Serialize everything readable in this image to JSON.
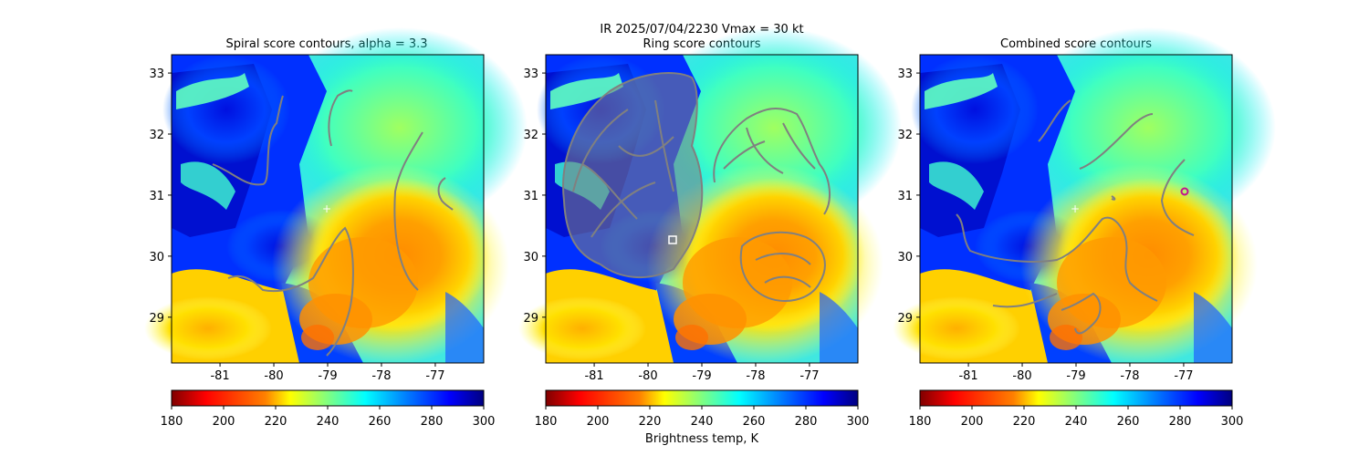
{
  "figure": {
    "suptitle": "IR  2025/07/04/2230    Vmax = 30 kt",
    "colorbar_label": "Brightness temp, K"
  },
  "chart_data": [
    {
      "type": "heatmap",
      "title": "Spiral score contours, alpha =  3.3",
      "xlim": [
        -81.9,
        -76.1
      ],
      "ylim": [
        28.25,
        33.3
      ],
      "xticks": [
        -81,
        -80,
        -79,
        -78,
        -77
      ],
      "yticks": [
        29,
        30,
        31,
        32,
        33
      ],
      "colorbar": {
        "min": 180,
        "max": 300,
        "ticks": [
          180,
          200,
          220,
          240,
          260,
          280,
          300
        ],
        "colormap": "jet_r"
      },
      "markers": [
        {
          "name": "center-estimate",
          "x": -79.05,
          "y": 30.77,
          "symbol": "+",
          "color": "#ffffff"
        }
      ]
    },
    {
      "type": "heatmap",
      "title": "Ring score contours",
      "xlim": [
        -81.9,
        -76.1
      ],
      "ylim": [
        28.25,
        33.3
      ],
      "xticks": [
        -81,
        -80,
        -79,
        -78,
        -77
      ],
      "yticks": [
        29,
        30,
        31,
        32,
        33
      ],
      "colorbar": {
        "min": 180,
        "max": 300,
        "ticks": [
          180,
          200,
          220,
          240,
          260,
          280,
          300
        ],
        "colormap": "jet_r"
      },
      "markers": [
        {
          "name": "ring-center",
          "x": -79.55,
          "y": 30.27,
          "symbol": "square",
          "color": "#ffffff"
        }
      ]
    },
    {
      "type": "heatmap",
      "title": "Combined score contours",
      "xlim": [
        -81.9,
        -76.1
      ],
      "ylim": [
        28.25,
        33.3
      ],
      "xticks": [
        -81,
        -80,
        -79,
        -78,
        -77
      ],
      "yticks": [
        29,
        30,
        31,
        32,
        33
      ],
      "colorbar": {
        "min": 180,
        "max": 300,
        "ticks": [
          180,
          200,
          220,
          240,
          260,
          280,
          300
        ],
        "colormap": "jet_r"
      },
      "markers": [
        {
          "name": "center-estimate",
          "x": -79.0,
          "y": 30.77,
          "symbol": "+",
          "color": "#ffffff"
        },
        {
          "name": "combined-center",
          "x": -76.8,
          "y": 31.05,
          "symbol": "circle",
          "color": "#c0158f"
        }
      ]
    }
  ],
  "colors": {
    "contour": "#808080",
    "colormap_stops": [
      "#800000",
      "#ff0000",
      "#ff8000",
      "#ffff00",
      "#80ff80",
      "#00ffff",
      "#0080ff",
      "#0000ff",
      "#000080"
    ]
  }
}
